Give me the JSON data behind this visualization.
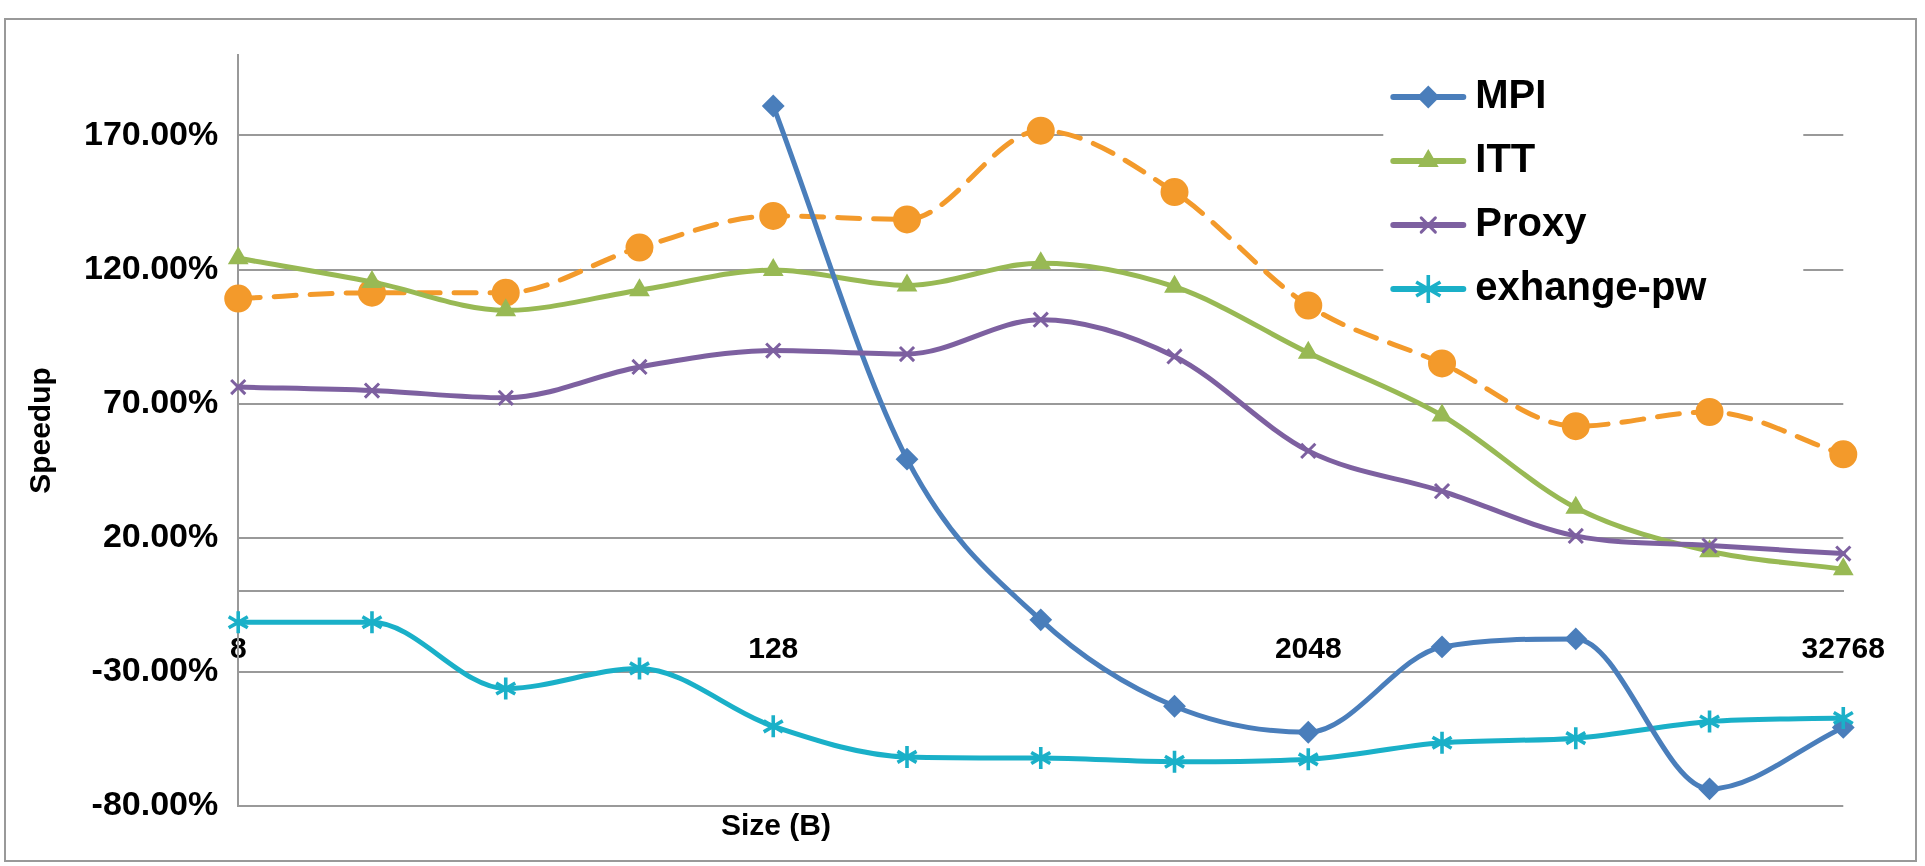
{
  "chart_data": {
    "type": "line",
    "ylabel": "Speedup",
    "xlabel": "Size (B)",
    "categories": [
      "8",
      null,
      null,
      null,
      "128",
      null,
      null,
      null,
      "2048",
      null,
      null,
      null,
      "32768"
    ],
    "ylim": [
      -80,
      200
    ],
    "yticks": [
      {
        "value": -80,
        "label": "-80.00%"
      },
      {
        "value": -30,
        "label": "-30.00%"
      },
      {
        "value": 20,
        "label": "20.00%"
      },
      {
        "value": 70,
        "label": "70.00%"
      },
      {
        "value": 120,
        "label": "120.00%"
      },
      {
        "value": 170,
        "label": "170.00%"
      }
    ],
    "grid": "y",
    "legend": "top right",
    "series": [
      {
        "name": "MPI",
        "color": "#4a7ebb",
        "marker": "diamond",
        "line_style": "solid",
        "values": [
          null,
          null,
          null,
          null,
          181,
          49.3,
          -10.6,
          -42.8,
          -52.5,
          -20.7,
          -17.7,
          -73.6,
          -50.7
        ]
      },
      {
        "name": "ITT",
        "color": "#98b954",
        "marker": "triangle",
        "line_style": "solid",
        "values": [
          124.2,
          115.4,
          104.8,
          112.3,
          119.8,
          114.1,
          122.4,
          113.6,
          89,
          65.6,
          31.2,
          15,
          8.3
        ]
      },
      {
        "name": "Proxy",
        "color": "#7d60a0",
        "marker": "cross",
        "line_style": "solid",
        "values": [
          76.2,
          74.9,
          72.2,
          83.7,
          89.8,
          88.5,
          101.3,
          87.6,
          52.4,
          37.4,
          20.7,
          17.1,
          14.1
        ]
      },
      {
        "name": "exhange-pw",
        "color": "#1ab0c8",
        "marker": "star",
        "line_style": "solid",
        "values": [
          -11.5,
          -11.5,
          -36.2,
          -28.7,
          -50.3,
          -61.7,
          -62.1,
          -63.5,
          -62.6,
          -56.4,
          -54.7,
          -48.5,
          -47.2
        ]
      },
      {
        "color": "#f39a2b",
        "marker": "circle",
        "line_style": "dashed",
        "values": [
          109.2,
          111.4,
          111.4,
          128.2,
          140,
          138.7,
          171.8,
          148.9,
          106.6,
          85,
          61.6,
          66.9,
          51.1
        ]
      }
    ]
  }
}
